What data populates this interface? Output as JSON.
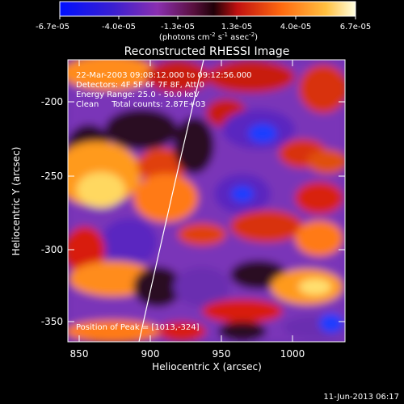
{
  "colorbar": {
    "ticks": [
      "-6.7e-05",
      "-4.0e-05",
      "-1.3e-05",
      "1.3e-05",
      "4.0e-05",
      "6.7e-05"
    ],
    "units_prefix": "(photons cm",
    "units_exp1": "-2",
    "units_mid": " s",
    "units_exp2": "-1",
    "units_mid2": " asec",
    "units_exp3": "-2",
    "units_suffix": ")"
  },
  "title": "Reconstructed RHESSI Image",
  "info": {
    "line1": "22-Mar-2003 09:08:12.000 to 09:12:56.000",
    "line2": "Detectors: 4F 5F 6F 7F 8F, Att 0",
    "line3": "Energy Range: 25.0 - 50.0 keV",
    "line4": "Clean     Total counts: 2.87E+03"
  },
  "peak": "Position of Peak = [1013,-324]",
  "axes": {
    "xlabel": "Heliocentric X (arcsec)",
    "ylabel": "Heliocentric Y (arcsec)",
    "xticks": [
      "850",
      "900",
      "950",
      "1000"
    ],
    "yticks": [
      "-200",
      "-250",
      "-300",
      "-350"
    ]
  },
  "footer_date": "11-Jun-2013 06:17",
  "colors": {
    "blue": "#1f3cff",
    "purple": "#6a2fb0",
    "red": "#d81e10",
    "orange": "#ff8c1a",
    "yellow": "#ffe070"
  }
}
